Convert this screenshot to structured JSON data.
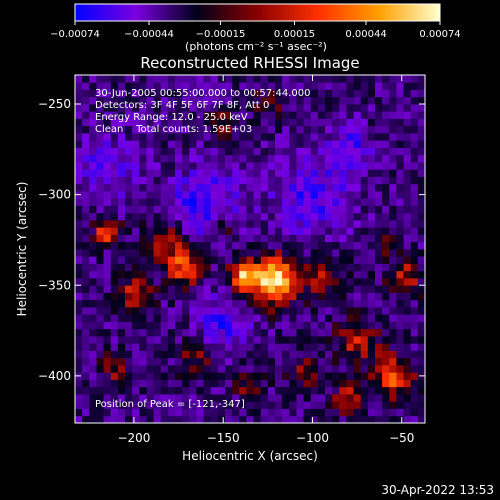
{
  "chart_data": {
    "type": "heatmap",
    "title": "Reconstructed RHESSI Image",
    "xlabel": "Heliocentric X (arcsec)",
    "ylabel": "Heliocentric Y (arcsec)",
    "x_ticks": [
      -200,
      -150,
      -100,
      -50
    ],
    "y_ticks": [
      -250,
      -300,
      -350,
      -400
    ],
    "x_tick_labels": [
      "−200",
      "−150",
      "−100",
      "−50"
    ],
    "y_tick_labels": [
      "−250",
      "−300",
      "−350",
      "−400"
    ],
    "xlim": [
      -233,
      -37
    ],
    "ylim": [
      -426,
      -234
    ],
    "annotations": [
      "30-Jun-2005 00:55:00.000 to 00:57:44.000",
      "Detectors: 3F 4F 5F 6F 7F 8F, Att 0",
      "Energy Range: 12.0 - 25.0 keV",
      "Clean    Total counts: 1.59E+03"
    ],
    "peak_label": "Position of Peak = [-121,-347]",
    "peak": {
      "x": -121,
      "y": -347
    },
    "colorbar": {
      "ticks": [
        -0.00074,
        -0.00044,
        -0.00015,
        0.00015,
        0.00044,
        0.00074
      ],
      "tick_labels": [
        "−0.00074",
        "−0.00044",
        "−0.00015",
        "0.00015",
        "0.00044",
        "0.00074"
      ],
      "unit_label": "(photons cm⁻² s⁻¹ asec⁻²)",
      "colors": [
        "#0000ff",
        "#7a00e0",
        "#00001a",
        "#8a0000",
        "#ff3000",
        "#ffa000",
        "#ffffd0"
      ]
    },
    "sources": [
      {
        "x": -121,
        "y": -347,
        "amp": 1.0,
        "sigma": 9
      },
      {
        "x": -138,
        "y": -345,
        "amp": 0.75,
        "sigma": 6
      },
      {
        "x": -172,
        "y": -340,
        "amp": 0.62,
        "sigma": 7
      },
      {
        "x": -182,
        "y": -325,
        "amp": 0.45,
        "sigma": 8
      },
      {
        "x": -215,
        "y": -320,
        "amp": 0.62,
        "sigma": 5
      },
      {
        "x": -200,
        "y": -355,
        "amp": 0.45,
        "sigma": 7
      },
      {
        "x": -150,
        "y": -318,
        "amp": 0.3,
        "sigma": 6
      },
      {
        "x": -150,
        "y": -262,
        "amp": 0.32,
        "sigma": 6
      },
      {
        "x": -125,
        "y": -250,
        "amp": 0.28,
        "sigma": 6
      },
      {
        "x": -95,
        "y": -345,
        "amp": 0.35,
        "sigma": 8
      },
      {
        "x": -75,
        "y": -380,
        "amp": 0.42,
        "sigma": 9
      },
      {
        "x": -55,
        "y": -400,
        "amp": 0.6,
        "sigma": 8
      },
      {
        "x": -80,
        "y": -412,
        "amp": 0.45,
        "sigma": 6
      },
      {
        "x": -48,
        "y": -345,
        "amp": 0.4,
        "sigma": 7
      },
      {
        "x": -60,
        "y": -325,
        "amp": 0.25,
        "sigma": 6
      },
      {
        "x": -105,
        "y": -398,
        "amp": 0.32,
        "sigma": 6
      },
      {
        "x": -135,
        "y": -405,
        "amp": 0.28,
        "sigma": 6
      },
      {
        "x": -165,
        "y": -390,
        "amp": 0.3,
        "sigma": 7
      },
      {
        "x": -210,
        "y": -395,
        "amp": 0.35,
        "sigma": 6
      },
      {
        "x": -65,
        "y": -265,
        "amp": 0.22,
        "sigma": 6
      }
    ],
    "negative_regions": [
      {
        "x": -160,
        "y": -305,
        "amp": 0.4,
        "sigma": 14
      },
      {
        "x": -100,
        "y": -300,
        "amp": 0.35,
        "sigma": 15
      },
      {
        "x": -75,
        "y": -270,
        "amp": 0.3,
        "sigma": 10
      },
      {
        "x": -150,
        "y": -370,
        "amp": 0.35,
        "sigma": 10
      },
      {
        "x": -215,
        "y": -285,
        "amp": 0.3,
        "sigma": 12
      }
    ]
  },
  "footer_date": "30-Apr-2022 13:53"
}
